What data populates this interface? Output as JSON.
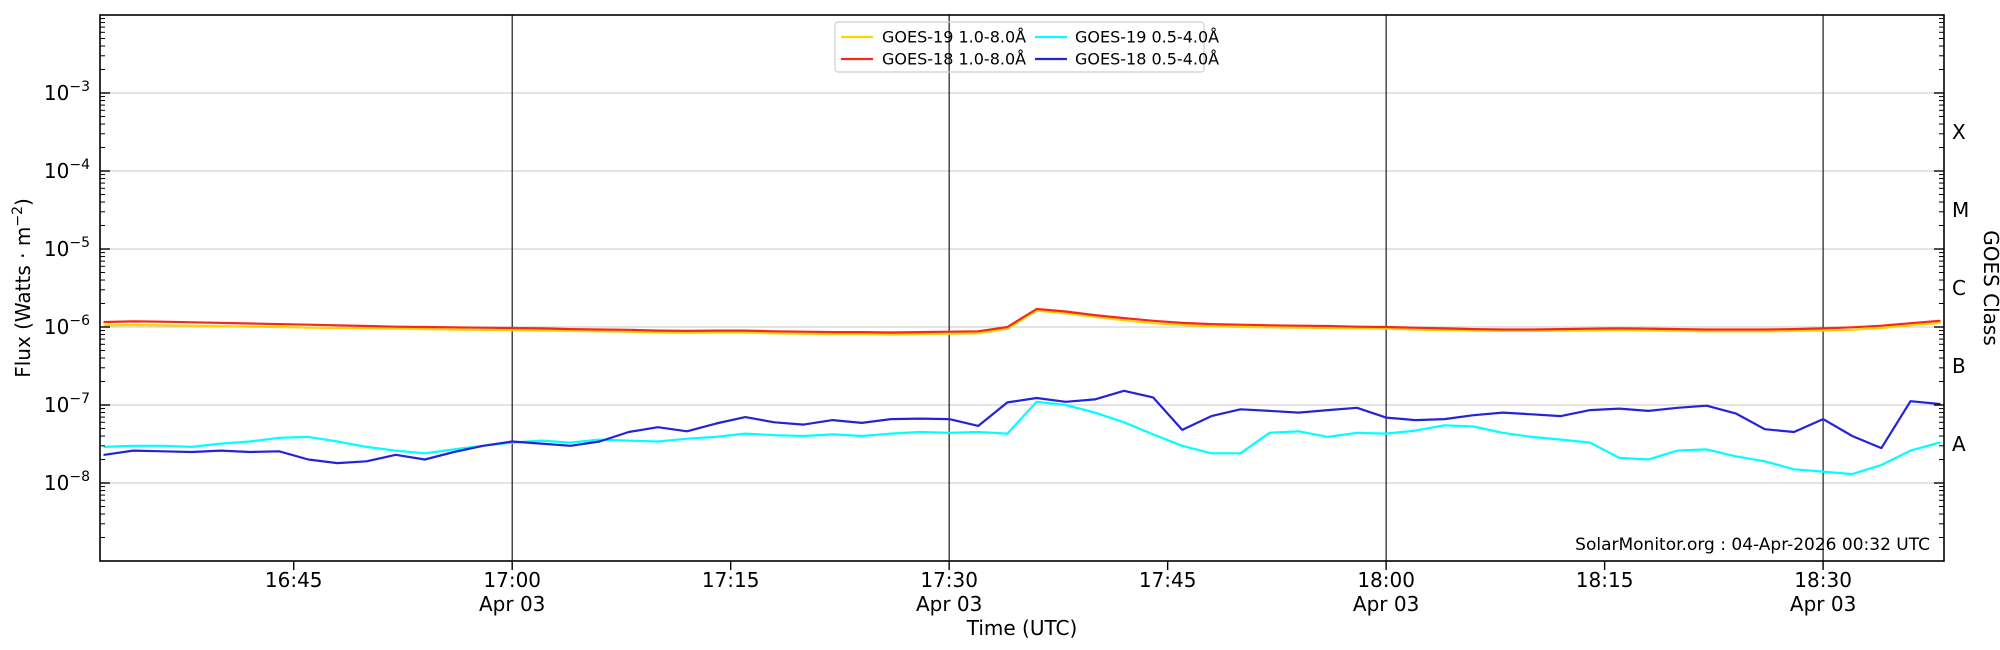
{
  "chart_data": {
    "type": "line",
    "title": "",
    "xlabel": "Time (UTC)",
    "ylabel": "Flux (Watts · m⁻²)",
    "ylabel_parts": {
      "pre": "Flux (Watts · m",
      "sup": "−2",
      "post": ")"
    },
    "ylabel_right": "GOES Class",
    "watermark": "SolarMonitor.org : 04-Apr-2026 00:32 UTC",
    "x_unit": "minutes after 16:00 UTC, Apr 03",
    "xlim_minutes": [
      31.7,
      158.3
    ],
    "ylim_exp": [
      -9,
      -2
    ],
    "grid": true,
    "grid_color": "#c9c9c9",
    "date_line_color": "#1a1a1a",
    "axis_color": "#000000",
    "y_ticks": [
      {
        "exp": -3,
        "base": "10",
        "sup": "−3"
      },
      {
        "exp": -4,
        "base": "10",
        "sup": "−4"
      },
      {
        "exp": -5,
        "base": "10",
        "sup": "−5"
      },
      {
        "exp": -6,
        "base": "10",
        "sup": "−6"
      },
      {
        "exp": -7,
        "base": "10",
        "sup": "−7"
      },
      {
        "exp": -8,
        "base": "10",
        "sup": "−8"
      }
    ],
    "x_ticks": [
      {
        "min": 45,
        "label": "16:45",
        "date": null
      },
      {
        "min": 60,
        "label": "17:00",
        "date": "Apr 03"
      },
      {
        "min": 75,
        "label": "17:15",
        "date": null
      },
      {
        "min": 90,
        "label": "17:30",
        "date": "Apr 03"
      },
      {
        "min": 105,
        "label": "17:45",
        "date": null
      },
      {
        "min": 120,
        "label": "18:00",
        "date": "Apr 03"
      },
      {
        "min": 135,
        "label": "18:15",
        "date": null
      },
      {
        "min": 150,
        "label": "18:30",
        "date": "Apr 03"
      }
    ],
    "goes_classes": [
      {
        "label": "X",
        "center_exp": -3.5
      },
      {
        "label": "M",
        "center_exp": -4.5
      },
      {
        "label": "C",
        "center_exp": -5.5
      },
      {
        "label": "B",
        "center_exp": -6.5
      },
      {
        "label": "A",
        "center_exp": -7.5
      }
    ],
    "legend": {
      "position": "top-center",
      "entries": [
        {
          "label": "GOES-19 1.0-8.0Å",
          "color": "#ffd400"
        },
        {
          "label": "GOES-18 1.0-8.0Å",
          "color": "#f5281c"
        },
        {
          "label": "GOES-19 0.5-4.0Å",
          "color": "#00ffff"
        },
        {
          "label": "GOES-18 0.5-4.0Å",
          "color": "#2323d8"
        }
      ]
    },
    "x_minutes": [
      32,
      34,
      36,
      38,
      40,
      42,
      44,
      46,
      48,
      50,
      52,
      54,
      56,
      58,
      60,
      62,
      64,
      66,
      68,
      70,
      72,
      74,
      76,
      78,
      80,
      82,
      84,
      86,
      88,
      90,
      92,
      94,
      96,
      98,
      100,
      102,
      104,
      106,
      108,
      110,
      112,
      114,
      116,
      118,
      120,
      122,
      124,
      126,
      128,
      130,
      132,
      134,
      136,
      138,
      140,
      142,
      144,
      146,
      148,
      150,
      152,
      154,
      156,
      158
    ],
    "series": [
      {
        "name": "GOES-19 1.0-8.0Å",
        "color": "#ffd400",
        "width": 2.2,
        "y": [
          1.05e-06,
          1.06e-06,
          1.05e-06,
          1.04e-06,
          1.03e-06,
          1.01e-06,
          1e-06,
          9.8e-07,
          9.7e-07,
          9.6e-07,
          9.5e-07,
          9.4e-07,
          9.3e-07,
          9.2e-07,
          9.1e-07,
          9e-07,
          8.9e-07,
          8.8e-07,
          8.7e-07,
          8.5e-07,
          8.4e-07,
          8.5e-07,
          8.5e-07,
          8.3e-07,
          8.2e-07,
          8.1e-07,
          8.1e-07,
          8e-07,
          8.1e-07,
          8.2e-07,
          8.3e-07,
          9.5e-07,
          1.62e-06,
          1.5e-06,
          1.35e-06,
          1.22e-06,
          1.12e-06,
          1.06e-06,
          1.02e-06,
          1e-06,
          9.9e-07,
          9.8e-07,
          9.7e-07,
          9.6e-07,
          9.5e-07,
          9.3e-07,
          9.1e-07,
          9e-07,
          8.9e-07,
          8.9e-07,
          9e-07,
          9e-07,
          9.1e-07,
          9e-07,
          8.9e-07,
          8.8e-07,
          8.8e-07,
          8.8e-07,
          8.9e-07,
          9e-07,
          9.2e-07,
          9.7e-07,
          1.05e-06,
          1.13e-06
        ]
      },
      {
        "name": "GOES-18 1.0-8.0Å",
        "color": "#f5281c",
        "width": 2.2,
        "y": [
          1.16e-06,
          1.18e-06,
          1.17e-06,
          1.15e-06,
          1.13e-06,
          1.11e-06,
          1.09e-06,
          1.07e-06,
          1.05e-06,
          1.03e-06,
          1.01e-06,
          1e-06,
          9.9e-07,
          9.8e-07,
          9.7e-07,
          9.6e-07,
          9.4e-07,
          9.3e-07,
          9.2e-07,
          9e-07,
          8.9e-07,
          9e-07,
          9e-07,
          8.8e-07,
          8.7e-07,
          8.6e-07,
          8.6e-07,
          8.5e-07,
          8.6e-07,
          8.7e-07,
          8.8e-07,
          1e-06,
          1.7e-06,
          1.58e-06,
          1.42e-06,
          1.3e-06,
          1.2e-06,
          1.13e-06,
          1.09e-06,
          1.07e-06,
          1.05e-06,
          1.04e-06,
          1.03e-06,
          1.01e-06,
          1e-06,
          9.8e-07,
          9.6e-07,
          9.4e-07,
          9.3e-07,
          9.3e-07,
          9.4e-07,
          9.5e-07,
          9.6e-07,
          9.5e-07,
          9.4e-07,
          9.3e-07,
          9.3e-07,
          9.3e-07,
          9.4e-07,
          9.6e-07,
          9.9e-07,
          1.04e-06,
          1.12e-06,
          1.2e-06
        ]
      },
      {
        "name": "GOES-19 0.5-4.0Å",
        "color": "#00ffff",
        "width": 2.2,
        "y": [
          2.9e-08,
          3e-08,
          3e-08,
          2.9e-08,
          3.2e-08,
          3.4e-08,
          3.8e-08,
          3.9e-08,
          3.4e-08,
          2.9e-08,
          2.6e-08,
          2.4e-08,
          2.7e-08,
          3e-08,
          3.3e-08,
          3.5e-08,
          3.3e-08,
          3.6e-08,
          3.5e-08,
          3.4e-08,
          3.7e-08,
          3.9e-08,
          4.3e-08,
          4.1e-08,
          4e-08,
          4.2e-08,
          4e-08,
          4.3e-08,
          4.5e-08,
          4.4e-08,
          4.5e-08,
          4.3e-08,
          1.1e-07,
          1e-07,
          8e-08,
          6e-08,
          4.2e-08,
          3e-08,
          2.4e-08,
          2.4e-08,
          4.4e-08,
          4.6e-08,
          3.9e-08,
          4.4e-08,
          4.3e-08,
          4.7e-08,
          5.5e-08,
          5.3e-08,
          4.4e-08,
          3.9e-08,
          3.6e-08,
          3.3e-08,
          2.1e-08,
          2e-08,
          2.6e-08,
          2.7e-08,
          2.2e-08,
          1.9e-08,
          1.5e-08,
          1.4e-08,
          1.3e-08,
          1.7e-08,
          2.6e-08,
          3.3e-08
        ]
      },
      {
        "name": "GOES-18 0.5-4.0Å",
        "color": "#2323d8",
        "width": 2.2,
        "y": [
          2.3e-08,
          2.6e-08,
          2.55e-08,
          2.5e-08,
          2.6e-08,
          2.5e-08,
          2.55e-08,
          2e-08,
          1.8e-08,
          1.9e-08,
          2.3e-08,
          2e-08,
          2.5e-08,
          3e-08,
          3.4e-08,
          3.2e-08,
          3e-08,
          3.4e-08,
          4.5e-08,
          5.2e-08,
          4.6e-08,
          5.8e-08,
          7e-08,
          6e-08,
          5.6e-08,
          6.4e-08,
          5.9e-08,
          6.6e-08,
          6.7e-08,
          6.6e-08,
          5.4e-08,
          1.08e-07,
          1.23e-07,
          1.1e-07,
          1.18e-07,
          1.52e-07,
          1.25e-07,
          4.8e-08,
          7.2e-08,
          8.8e-08,
          8.4e-08,
          8e-08,
          8.6e-08,
          9.2e-08,
          6.9e-08,
          6.4e-08,
          6.6e-08,
          7.4e-08,
          8e-08,
          7.6e-08,
          7.2e-08,
          8.6e-08,
          9e-08,
          8.4e-08,
          9.2e-08,
          9.8e-08,
          7.8e-08,
          4.9e-08,
          4.5e-08,
          6.6e-08,
          4e-08,
          2.8e-08,
          1.12e-07,
          1.03e-07
        ]
      }
    ]
  }
}
